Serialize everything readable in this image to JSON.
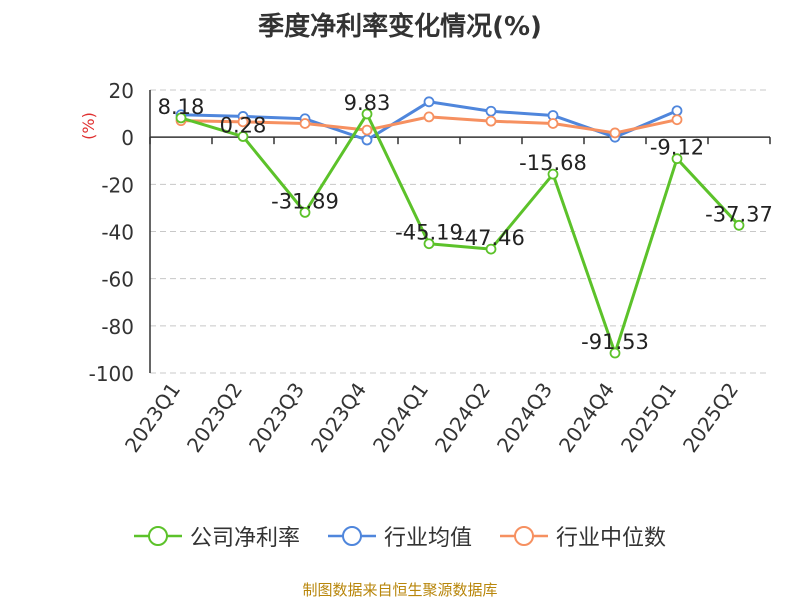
{
  "chart_data": {
    "type": "line",
    "title": "季度净利率变化情况(%)",
    "ylabel": "(%)",
    "categories": [
      "2023Q1",
      "2023Q2",
      "2023Q3",
      "2023Q4",
      "2024Q1",
      "2024Q2",
      "2024Q3",
      "2024Q4",
      "2025Q1",
      "2025Q2"
    ],
    "yticks": [
      20,
      0,
      -20,
      -40,
      -60,
      -80,
      -100
    ],
    "ylim": [
      -100,
      20
    ],
    "grid": true,
    "legend_position": "bottom",
    "series": [
      {
        "name": "公司净利率",
        "color": "#5cc22a",
        "values": [
          8.18,
          0.28,
          -31.89,
          9.83,
          -45.19,
          -47.46,
          -15.68,
          -91.53,
          -9.12,
          -37.37
        ],
        "labels": [
          "8.18",
          "0.28",
          "-31.89",
          "9.83",
          "-45.19",
          "-47.46",
          "-15.68",
          "-91.53",
          "-9.12",
          "-37.37"
        ]
      },
      {
        "name": "行业均值",
        "color": "#4f86dc",
        "values": [
          9.5,
          8.8,
          7.8,
          -1.2,
          15.0,
          11.0,
          9.2,
          0.0,
          11.2,
          null
        ]
      },
      {
        "name": "行业中位数",
        "color": "#f69060",
        "values": [
          7.0,
          6.5,
          5.8,
          3.0,
          8.6,
          6.8,
          5.8,
          1.8,
          7.4,
          null
        ]
      }
    ]
  },
  "footer": {
    "source": "制图数据来自恒生聚源数据库"
  }
}
